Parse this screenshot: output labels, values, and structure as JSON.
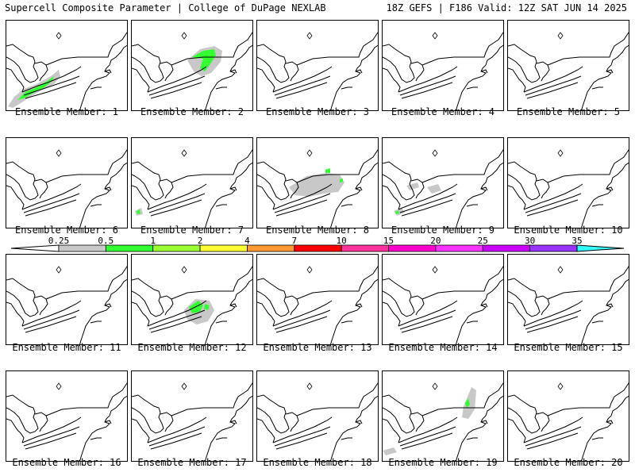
{
  "header": {
    "left": "Supercell Composite Parameter | College of DuPage NEXLAB",
    "right": "18Z GEFS | F186 Valid: 12Z SAT JUN 14 2025"
  },
  "colorbar": {
    "tick_labels": [
      "0.25",
      "0.5",
      "1",
      "2",
      "4",
      "7",
      "10",
      "15",
      "20",
      "25",
      "30",
      "35"
    ],
    "colors": [
      "#c8c8c8",
      "#33ff33",
      "#99ff33",
      "#ffff33",
      "#ff9933",
      "#ff0000",
      "#ff3399",
      "#ff00cc",
      "#ff33ff",
      "#cc00ff",
      "#9933ff",
      "#bb66ff",
      "#33ffff"
    ]
  },
  "panels": [
    {
      "label": "Ensemble Member: 1"
    },
    {
      "label": "Ensemble Member: 2"
    },
    {
      "label": "Ensemble Member: 3"
    },
    {
      "label": "Ensemble Member: 4"
    },
    {
      "label": "Ensemble Member: 5"
    },
    {
      "label": "Ensemble Member: 6"
    },
    {
      "label": "Ensemble Member: 7"
    },
    {
      "label": "Ensemble Member: 8"
    },
    {
      "label": "Ensemble Member: 9"
    },
    {
      "label": "Ensemble Member: 10"
    },
    {
      "label": "Ensemble Member: 11"
    },
    {
      "label": "Ensemble Member: 12"
    },
    {
      "label": "Ensemble Member: 13"
    },
    {
      "label": "Ensemble Member: 14"
    },
    {
      "label": "Ensemble Member: 15"
    },
    {
      "label": "Ensemble Member: 16"
    },
    {
      "label": "Ensemble Member: 17"
    },
    {
      "label": "Ensemble Member: 18"
    },
    {
      "label": "Ensemble Member: 19"
    },
    {
      "label": "Ensemble Member: 20"
    }
  ]
}
